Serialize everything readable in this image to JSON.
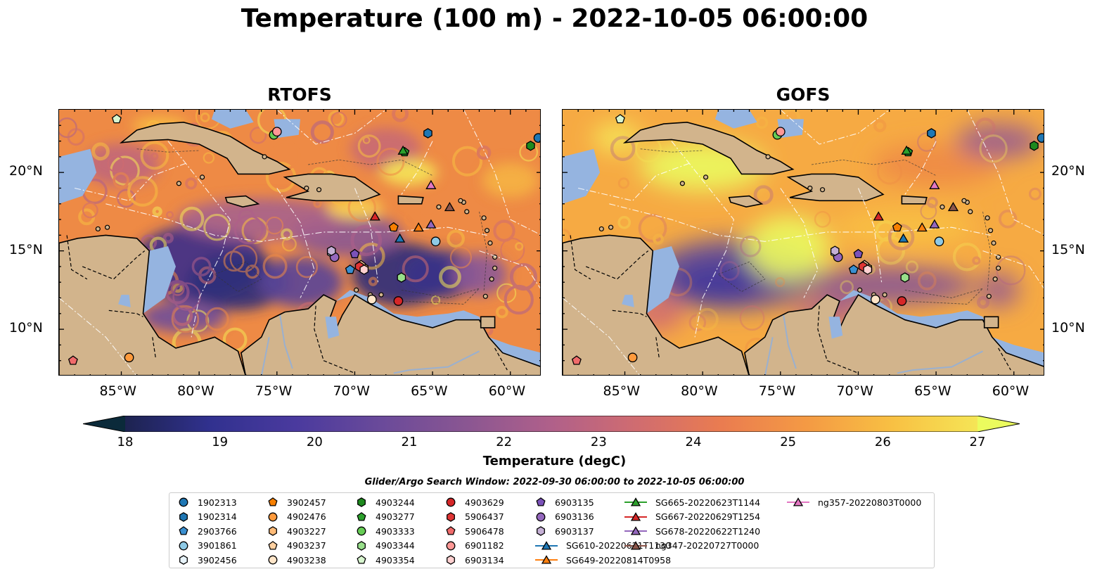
{
  "title": "Temperature (100 m) - 2022-10-05 06:00:00",
  "panels": [
    {
      "title": "RTOFS",
      "model": "rtofs"
    },
    {
      "title": "GOFS",
      "model": "gofs"
    }
  ],
  "lon_ticks": [
    "85°W",
    "80°W",
    "75°W",
    "70°W",
    "65°W",
    "60°W"
  ],
  "lat_ticks": [
    "20°N",
    "15°N",
    "10°N"
  ],
  "colorbar": {
    "label": "Temperature (degC)",
    "ticks": [
      "18",
      "19",
      "20",
      "21",
      "22",
      "23",
      "24",
      "25",
      "26",
      "27"
    ],
    "range": [
      18,
      27
    ],
    "extend": "both",
    "colors": [
      "#0b2a3a",
      "#1d2350",
      "#31318f",
      "#4a3a9e",
      "#6a4a9a",
      "#8a5692",
      "#b0608a",
      "#d06c70",
      "#ea7c50",
      "#f49a44",
      "#f8c043",
      "#f5e556",
      "#ebfb5e"
    ]
  },
  "search_window": "Glider/Argo Search Window: 2022-09-30 06:00:00 to 2022-10-05 06:00:00",
  "legend": [
    {
      "label": "1902313",
      "marker": "circle",
      "color": "#1f77b4"
    },
    {
      "label": "1902314",
      "marker": "hexagon",
      "color": "#1f77b4"
    },
    {
      "label": "2903766",
      "marker": "pentagon",
      "color": "#3a8fd0"
    },
    {
      "label": "3901861",
      "marker": "circle",
      "color": "#8ecae6"
    },
    {
      "label": "3902456",
      "marker": "hexagon",
      "color": "#e8f4fb"
    },
    {
      "label": "3902457",
      "marker": "pentagon",
      "color": "#f77f00"
    },
    {
      "label": "4902476",
      "marker": "circle",
      "color": "#ff9a3c"
    },
    {
      "label": "4903227",
      "marker": "hexagon",
      "color": "#ffbb78"
    },
    {
      "label": "4903237",
      "marker": "pentagon",
      "color": "#ffd0a0"
    },
    {
      "label": "4903238",
      "marker": "circle",
      "color": "#ffe5c8"
    },
    {
      "label": "4903244",
      "marker": "hexagon",
      "color": "#1e8a1e"
    },
    {
      "label": "4903277",
      "marker": "pentagon",
      "color": "#2ca02c"
    },
    {
      "label": "4903333",
      "marker": "circle",
      "color": "#66cc55"
    },
    {
      "label": "4903344",
      "marker": "hexagon",
      "color": "#98df8a"
    },
    {
      "label": "4903354",
      "marker": "pentagon",
      "color": "#d8f5cf"
    },
    {
      "label": "4903629",
      "marker": "circle",
      "color": "#d62728"
    },
    {
      "label": "5906437",
      "marker": "hexagon",
      "color": "#e03535"
    },
    {
      "label": "5906478",
      "marker": "pentagon",
      "color": "#f06b6b"
    },
    {
      "label": "6901182",
      "marker": "circle",
      "color": "#ff9896"
    },
    {
      "label": "6903134",
      "marker": "hexagon",
      "color": "#ffd0d0"
    },
    {
      "label": "6903135",
      "marker": "pentagon",
      "color": "#7b52b9"
    },
    {
      "label": "6903136",
      "marker": "circle",
      "color": "#9467bd"
    },
    {
      "label": "6903137",
      "marker": "hexagon",
      "color": "#c5b0d5"
    },
    {
      "label": "SG610-20220621T1130",
      "marker": "triangle",
      "color": "#1f77b4",
      "line": true
    },
    {
      "label": "SG649-20220814T0958",
      "marker": "triangle",
      "color": "#ff7f0e",
      "line": true
    },
    {
      "label": "SG665-20220623T1144",
      "marker": "triangle",
      "color": "#2ca02c",
      "line": true
    },
    {
      "label": "SG667-20220629T1254",
      "marker": "triangle",
      "color": "#d62728",
      "line": true
    },
    {
      "label": "SG678-20220622T1240",
      "marker": "triangle",
      "color": "#9467bd",
      "line": true
    },
    {
      "label": "ng347-20220727T0000",
      "marker": "triangle",
      "color": "#8c564b",
      "line": true
    },
    {
      "label": "ng357-20220803T0000",
      "marker": "triangle",
      "color": "#e377c2",
      "line": true
    }
  ],
  "observations": [
    {
      "id": "1902313",
      "lon": -58.2,
      "lat": 22.2
    },
    {
      "id": "1902314",
      "lon": -65.3,
      "lat": 22.5
    },
    {
      "id": "2903766",
      "lon": -70.3,
      "lat": 13.8
    },
    {
      "id": "3901861",
      "lon": -64.8,
      "lat": 15.6
    },
    {
      "id": "3902456",
      "lon": -71.5,
      "lat": 14.9
    },
    {
      "id": "3902457",
      "lon": -67.5,
      "lat": 16.5
    },
    {
      "id": "4902476",
      "lon": -84.5,
      "lat": 8.2
    },
    {
      "id": "4903227",
      "lon": -69.4,
      "lat": 13.9
    },
    {
      "id": "4903237",
      "lon": -69.6,
      "lat": 14.1
    },
    {
      "id": "4903238",
      "lon": -68.9,
      "lat": 11.9
    },
    {
      "id": "4903244",
      "lon": -58.7,
      "lat": 21.7
    },
    {
      "id": "4903277",
      "lon": -66.8,
      "lat": 21.3
    },
    {
      "id": "4903333",
      "lon": -75.2,
      "lat": 22.4
    },
    {
      "id": "4903344",
      "lon": -67.0,
      "lat": 13.3
    },
    {
      "id": "4903354",
      "lon": -85.3,
      "lat": 23.4
    },
    {
      "id": "4903629",
      "lon": -67.2,
      "lat": 11.8
    },
    {
      "id": "5906437",
      "lon": -69.7,
      "lat": 14.0
    },
    {
      "id": "5906478",
      "lon": -88.1,
      "lat": 8.0
    },
    {
      "id": "6901182",
      "lon": -75.0,
      "lat": 22.6
    },
    {
      "id": "6903134",
      "lon": -69.4,
      "lat": 13.8
    },
    {
      "id": "6903135",
      "lon": -70.0,
      "lat": 14.8
    },
    {
      "id": "6903136",
      "lon": -71.3,
      "lat": 14.6
    },
    {
      "id": "6903137",
      "lon": -71.5,
      "lat": 15.0
    },
    {
      "id": "SG610-20220621T1130",
      "lon": -67.1,
      "lat": 15.8
    },
    {
      "id": "SG649-20220814T0958",
      "lon": -65.9,
      "lat": 16.5
    },
    {
      "id": "SG665-20220623T1144",
      "lon": -66.9,
      "lat": 21.4
    },
    {
      "id": "SG667-20220629T1254",
      "lon": -68.7,
      "lat": 17.2
    },
    {
      "id": "SG678-20220622T1240",
      "lon": -65.1,
      "lat": 16.7
    },
    {
      "id": "ng347-20220727T0000",
      "lon": -63.9,
      "lat": 17.8
    },
    {
      "id": "ng357-20220803T0000",
      "lon": -65.1,
      "lat": 19.2
    }
  ]
}
